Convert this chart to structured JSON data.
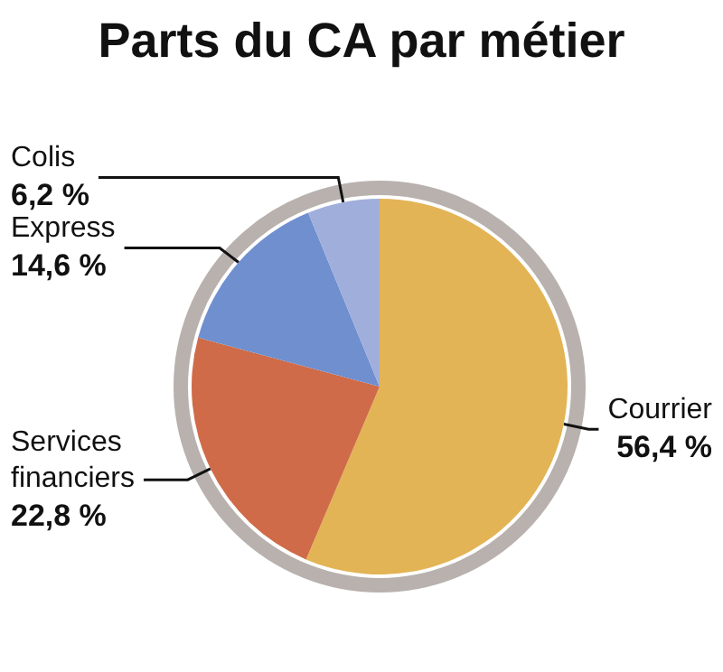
{
  "chart_data": {
    "type": "pie",
    "title": "Parts du CA par métier",
    "categories": [
      "Courrier",
      "Services financiers",
      "Express",
      "Colis"
    ],
    "values": [
      56.4,
      22.8,
      14.6,
      6.2
    ],
    "colors": [
      "#e3b455",
      "#cf6b48",
      "#6f8fcf",
      "#a0aedb"
    ],
    "value_labels": [
      "56,4 %",
      "22,8 %",
      "14,6 %",
      "6,2 %"
    ],
    "legend": false
  }
}
